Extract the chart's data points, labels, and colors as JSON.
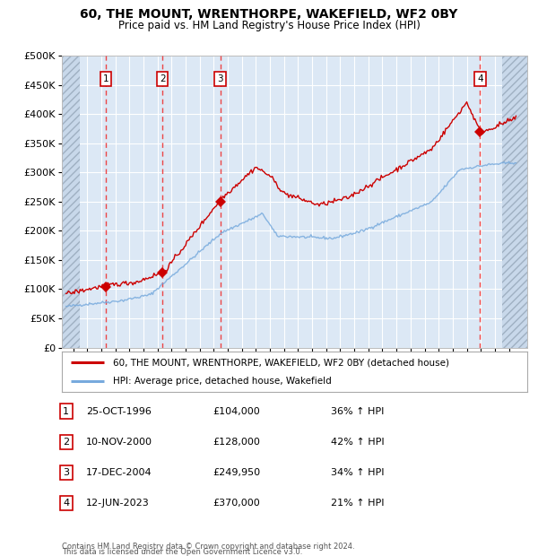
{
  "title": "60, THE MOUNT, WRENTHORPE, WAKEFIELD, WF2 0BY",
  "subtitle": "Price paid vs. HM Land Registry's House Price Index (HPI)",
  "ylim": [
    0,
    500000
  ],
  "xlim_start": 1993.7,
  "xlim_end": 2026.8,
  "yticks": [
    0,
    50000,
    100000,
    150000,
    200000,
    250000,
    300000,
    350000,
    400000,
    450000,
    500000
  ],
  "sale_dates": [
    1996.82,
    2000.86,
    2004.96,
    2023.45
  ],
  "sale_prices": [
    104000,
    128000,
    249950,
    370000
  ],
  "sale_labels": [
    "1",
    "2",
    "3",
    "4"
  ],
  "bg_color": "#ffffff",
  "plot_bg_color": "#dce8f5",
  "hatch_left_end": 1995.0,
  "hatch_right_start": 2025.0,
  "grid_color": "#ffffff",
  "red_line_color": "#cc0000",
  "blue_line_color": "#77aadd",
  "vline_color": "#ee3333",
  "legend_label_red": "60, THE MOUNT, WRENTHORPE, WAKEFIELD, WF2 0BY (detached house)",
  "legend_label_blue": "HPI: Average price, detached house, Wakefield",
  "table_entries": [
    {
      "num": "1",
      "date": "25-OCT-1996",
      "price": "£104,000",
      "pct": "36% ↑ HPI"
    },
    {
      "num": "2",
      "date": "10-NOV-2000",
      "price": "£128,000",
      "pct": "42% ↑ HPI"
    },
    {
      "num": "3",
      "date": "17-DEC-2004",
      "price": "£249,950",
      "pct": "34% ↑ HPI"
    },
    {
      "num": "4",
      "date": "12-JUN-2023",
      "price": "£370,000",
      "pct": "21% ↑ HPI"
    }
  ],
  "footnote1": "Contains HM Land Registry data © Crown copyright and database right 2024.",
  "footnote2": "This data is licensed under the Open Government Licence v3.0."
}
